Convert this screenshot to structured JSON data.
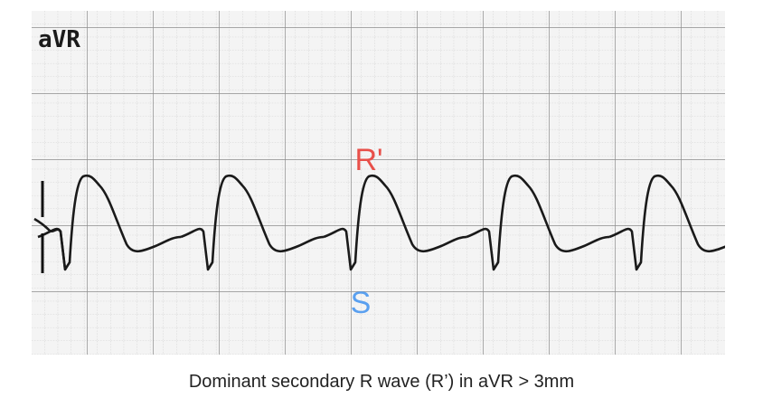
{
  "lead_label": "aVR",
  "annotations": {
    "r_prime": "R'",
    "s": "S"
  },
  "caption": "Dominant secondary R wave (R’) in aVR > 3mm"
}
